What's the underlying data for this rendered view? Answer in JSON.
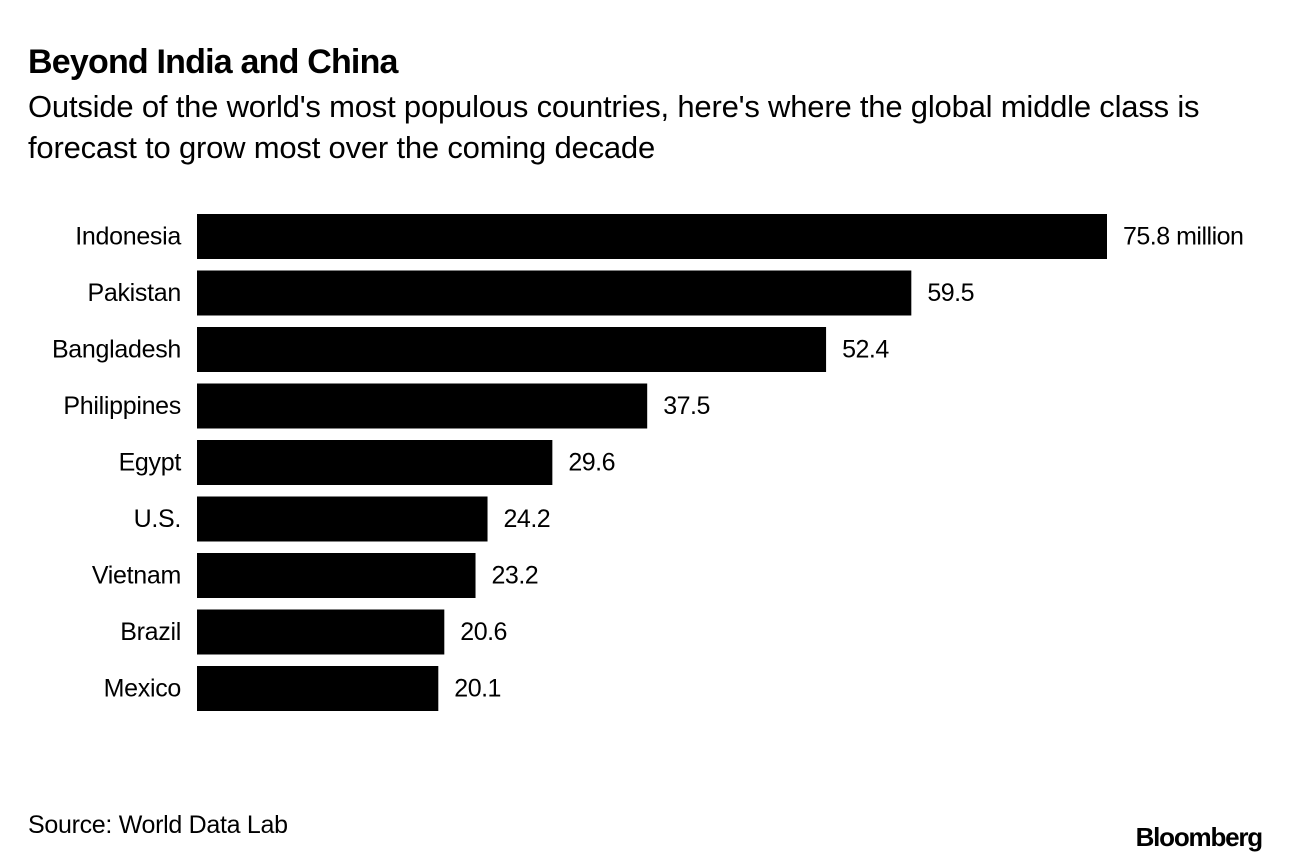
{
  "chart_data": {
    "type": "bar",
    "orientation": "horizontal",
    "title": "Beyond India and China",
    "subtitle": "Outside of the world's most populous countries, here's where the global middle class is forecast to grow most over the coming decade",
    "categories": [
      "Indonesia",
      "Pakistan",
      "Bangladesh",
      "Philippines",
      "Egypt",
      "U.S.",
      "Vietnam",
      "Brazil",
      "Mexico"
    ],
    "values": [
      75.8,
      59.5,
      52.4,
      37.5,
      29.6,
      24.2,
      23.2,
      20.6,
      20.1
    ],
    "value_labels": [
      "75.8 million",
      "59.5",
      "52.4",
      "37.5",
      "29.6",
      "24.2",
      "23.2",
      "20.6",
      "20.1"
    ],
    "xlabel": "",
    "ylabel": "",
    "xlim": [
      0,
      75.8
    ],
    "grid": false,
    "bar_color": "#000000"
  },
  "source": "Source: World Data Lab",
  "brand": "Bloomberg"
}
